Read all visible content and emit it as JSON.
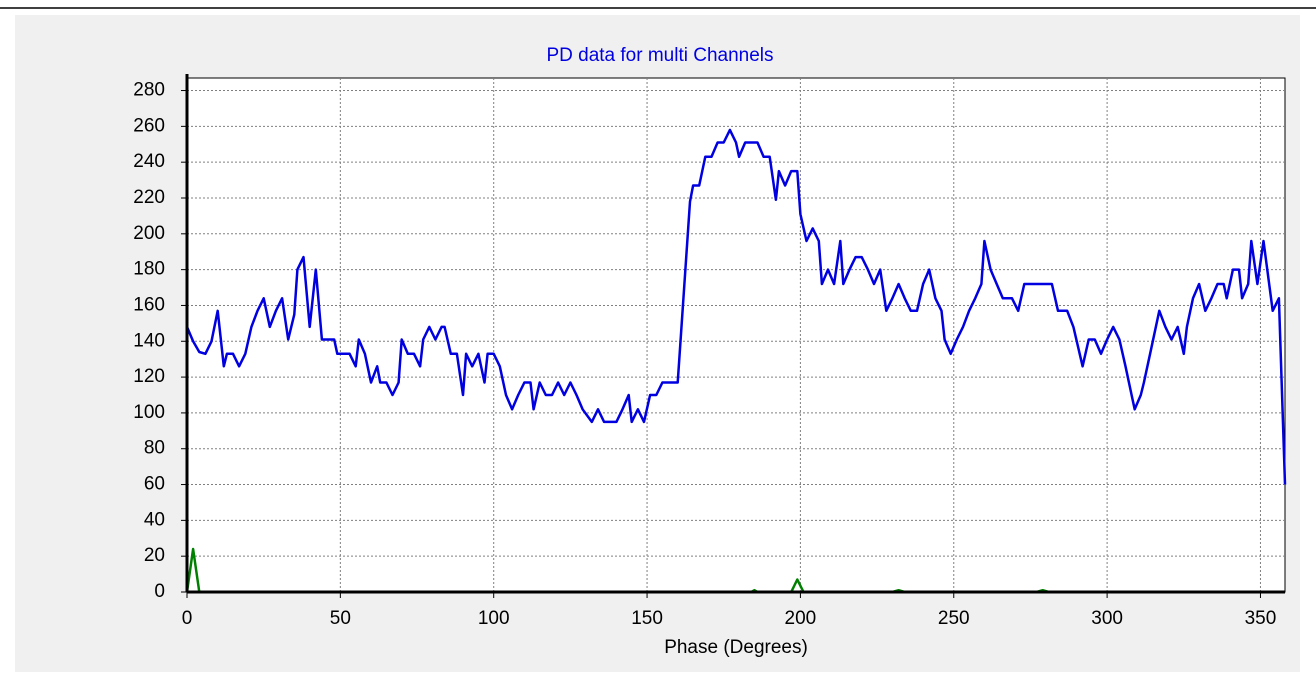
{
  "chart_data": {
    "type": "line",
    "title": "PD data for multi Channels",
    "x_label": "Phase (Degrees)",
    "xlim": [
      0,
      358
    ],
    "xticks": [
      0,
      50,
      100,
      150,
      200,
      250,
      300,
      350
    ],
    "ylim": [
      0,
      287
    ],
    "yticks": [
      0,
      20,
      40,
      60,
      80,
      100,
      120,
      140,
      160,
      180,
      200,
      220,
      240,
      260,
      280
    ],
    "grid": true,
    "series": [
      {
        "color": "#0000e0",
        "x": [
          0,
          2,
          4,
          6,
          8,
          10,
          12,
          13,
          15,
          17,
          19,
          21,
          23,
          25,
          27,
          29,
          31,
          33,
          35,
          36,
          38,
          40,
          42,
          44,
          48,
          49,
          53,
          55,
          56,
          58,
          60,
          62,
          63,
          65,
          67,
          69,
          70,
          72,
          74,
          76,
          77,
          79,
          81,
          83,
          84,
          86,
          88,
          90,
          91,
          93,
          95,
          97,
          98,
          100,
          102,
          104,
          106,
          108,
          110,
          112,
          113,
          115,
          117,
          119,
          121,
          123,
          125,
          127,
          129,
          132,
          134,
          136,
          140,
          142,
          144,
          145,
          147,
          149,
          151,
          153,
          155,
          160,
          164,
          165,
          167,
          169,
          171,
          173,
          175,
          177,
          179,
          180,
          182,
          186,
          188,
          190,
          192,
          193,
          195,
          197,
          199,
          200,
          202,
          204,
          206,
          207,
          209,
          211,
          213,
          214,
          216,
          218,
          220,
          222,
          224,
          226,
          228,
          230,
          232,
          234,
          236,
          238,
          240,
          242,
          244,
          246,
          247,
          249,
          251,
          253,
          255,
          257,
          259,
          260,
          262,
          264,
          266,
          269,
          271,
          273,
          282,
          284,
          287,
          289,
          292,
          294,
          296,
          298,
          300,
          302,
          304,
          306,
          308,
          309,
          311,
          312,
          314,
          317,
          319,
          321,
          323,
          325,
          326,
          328,
          330,
          332,
          334,
          336,
          338,
          339,
          341,
          343,
          344,
          346,
          347,
          349,
          351,
          354,
          356,
          358
        ],
        "values": [
          148,
          140,
          134,
          133,
          140,
          157,
          126,
          133,
          133,
          126,
          133,
          148,
          157,
          164,
          148,
          157,
          164,
          141,
          155,
          180,
          187,
          148,
          180,
          141,
          141,
          133,
          133,
          126,
          141,
          133,
          117,
          126,
          117,
          117,
          110,
          117,
          141,
          133,
          133,
          126,
          141,
          148,
          141,
          148,
          148,
          133,
          133,
          110,
          133,
          126,
          133,
          117,
          133,
          133,
          126,
          110,
          102,
          110,
          117,
          117,
          102,
          117,
          110,
          110,
          117,
          110,
          117,
          110,
          102,
          95,
          102,
          95,
          95,
          102,
          110,
          95,
          102,
          95,
          110,
          110,
          117,
          117,
          218,
          227,
          227,
          243,
          243,
          251,
          251,
          258,
          251,
          243,
          251,
          251,
          243,
          243,
          219,
          235,
          227,
          235,
          235,
          211,
          196,
          203,
          196,
          172,
          180,
          172,
          196,
          172,
          180,
          187,
          187,
          180,
          172,
          180,
          157,
          164,
          172,
          164,
          157,
          157,
          172,
          180,
          164,
          157,
          141,
          133,
          141,
          148,
          157,
          164,
          172,
          196,
          180,
          172,
          164,
          164,
          157,
          172,
          172,
          157,
          157,
          148,
          126,
          141,
          141,
          133,
          141,
          148,
          141,
          126,
          110,
          102,
          110,
          117,
          133,
          157,
          148,
          141,
          148,
          133,
          148,
          164,
          172,
          157,
          164,
          172,
          172,
          164,
          180,
          180,
          164,
          172,
          196,
          172,
          196,
          157,
          164,
          60
        ]
      },
      {
        "color": "#008000",
        "x": [
          0,
          2,
          4,
          184,
          185,
          186,
          197,
          199,
          201,
          230,
          232,
          234,
          277,
          279,
          281,
          358
        ],
        "values": [
          0,
          24,
          0,
          0,
          1,
          0,
          0,
          7,
          0,
          0,
          1,
          0,
          0,
          1,
          0,
          0
        ]
      }
    ]
  }
}
